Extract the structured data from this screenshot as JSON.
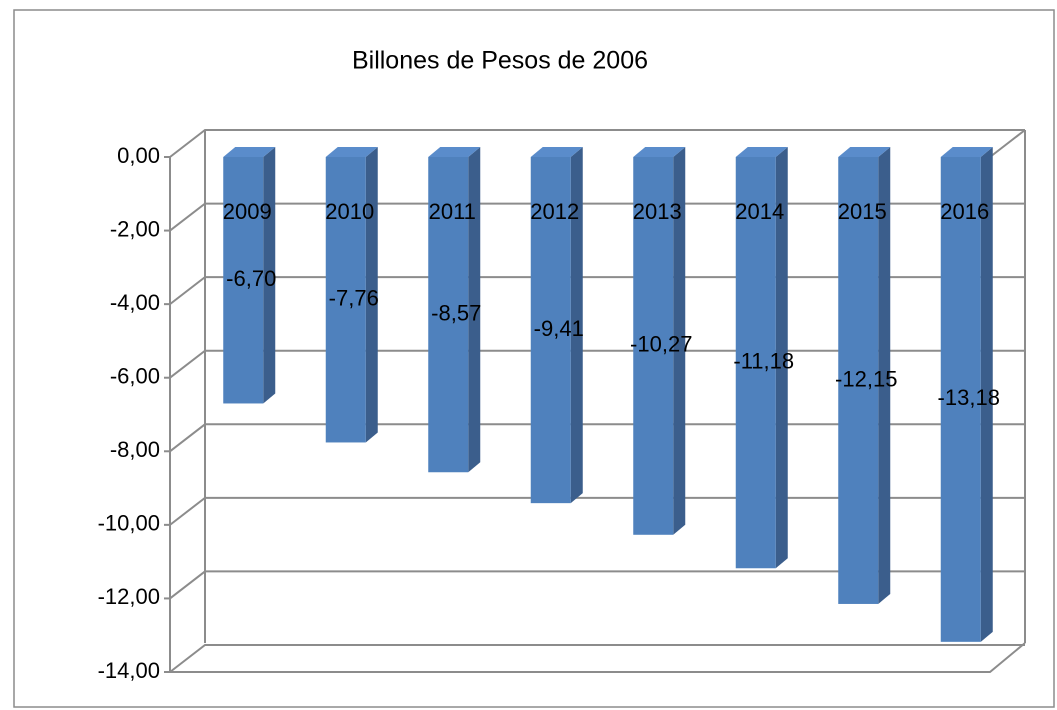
{
  "chart_data": {
    "type": "bar3d",
    "title": "Billones de Pesos de 2006",
    "categories": [
      "2009",
      "2010",
      "2011",
      "2012",
      "2013",
      "2014",
      "2015",
      "2016"
    ],
    "values": [
      -6.7,
      -7.76,
      -8.57,
      -9.41,
      -10.27,
      -11.18,
      -12.15,
      -13.18
    ],
    "value_labels": [
      "-6,70",
      "-7,76",
      "-8,57",
      "-9,41",
      "-10,27",
      "-11,18",
      "-12,15",
      "-13,18"
    ],
    "color": "#4f81bd",
    "ylim": [
      -14,
      0
    ],
    "yticks": [
      {
        "value": 0,
        "label": "0,00"
      },
      {
        "value": -2,
        "label": "-2,00"
      },
      {
        "value": -4,
        "label": "-4,00"
      },
      {
        "value": -6,
        "label": "-6,00"
      },
      {
        "value": -8,
        "label": "-8,00"
      },
      {
        "value": -10,
        "label": "-10,00"
      },
      {
        "value": -12,
        "label": "-12,00"
      },
      {
        "value": -14,
        "label": "-14,00"
      }
    ],
    "grid": true
  }
}
